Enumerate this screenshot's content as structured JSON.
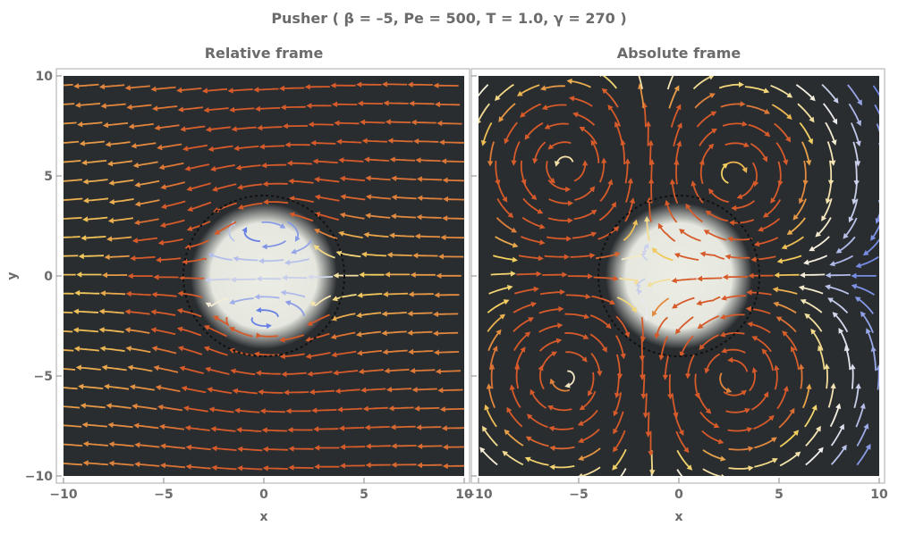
{
  "figure": {
    "title": "Pusher ( β = –5, Pe = 500, T = 1.0, γ = 270 )"
  },
  "chart_data": [
    {
      "type": "streamplot",
      "title": "Relative frame",
      "xlabel": "x",
      "ylabel": "y",
      "xlim": [
        -10,
        10
      ],
      "ylim": [
        -10,
        10
      ],
      "x_ticks": [
        -10,
        -5,
        0,
        5,
        10
      ],
      "y_ticks": [
        -10,
        -5,
        0,
        5,
        10
      ],
      "x_tick_labels": [
        "−10",
        "−5",
        "0",
        "5",
        "10"
      ],
      "y_tick_labels": [
        "−10",
        "−5",
        "0",
        "5",
        "10"
      ],
      "background": "dark",
      "droplet": {
        "cx": 0,
        "cy": 0,
        "r": 3.0
      },
      "dashed_circle": {
        "cx": 0,
        "cy": 0,
        "r": 4.0
      },
      "flow": {
        "uniform": -1,
        "strength": 16
      }
    },
    {
      "type": "streamplot",
      "title": "Absolute frame",
      "xlabel": "x",
      "xlim": [
        -10,
        10
      ],
      "ylim": [
        -10,
        10
      ],
      "x_ticks": [
        -10,
        -5,
        0,
        5,
        10
      ],
      "y_ticks": [
        -10,
        -5,
        0,
        5,
        10
      ],
      "x_tick_labels": [
        "−10",
        "−5",
        "0",
        "5",
        "10"
      ],
      "background": "dark",
      "droplet": {
        "cx": 0,
        "cy": 0,
        "r": 3.0
      },
      "dashed_circle": {
        "cx": 0,
        "cy": 0,
        "r": 4.0
      },
      "vortices": [
        {
          "x": -5.5,
          "y": 5.5,
          "sense": 1
        },
        {
          "x": 2.5,
          "y": 5.0,
          "sense": -1
        },
        {
          "x": -5.5,
          "y": -5.0,
          "sense": -1
        },
        {
          "x": 2.5,
          "y": -5.0,
          "sense": 1
        }
      ]
    }
  ],
  "colors": {
    "background": "#2a2d30",
    "droplet": "#eceee6",
    "slow": "#3f5fe0",
    "mid": "#f5f3ee",
    "fast": "#d65a2a"
  }
}
